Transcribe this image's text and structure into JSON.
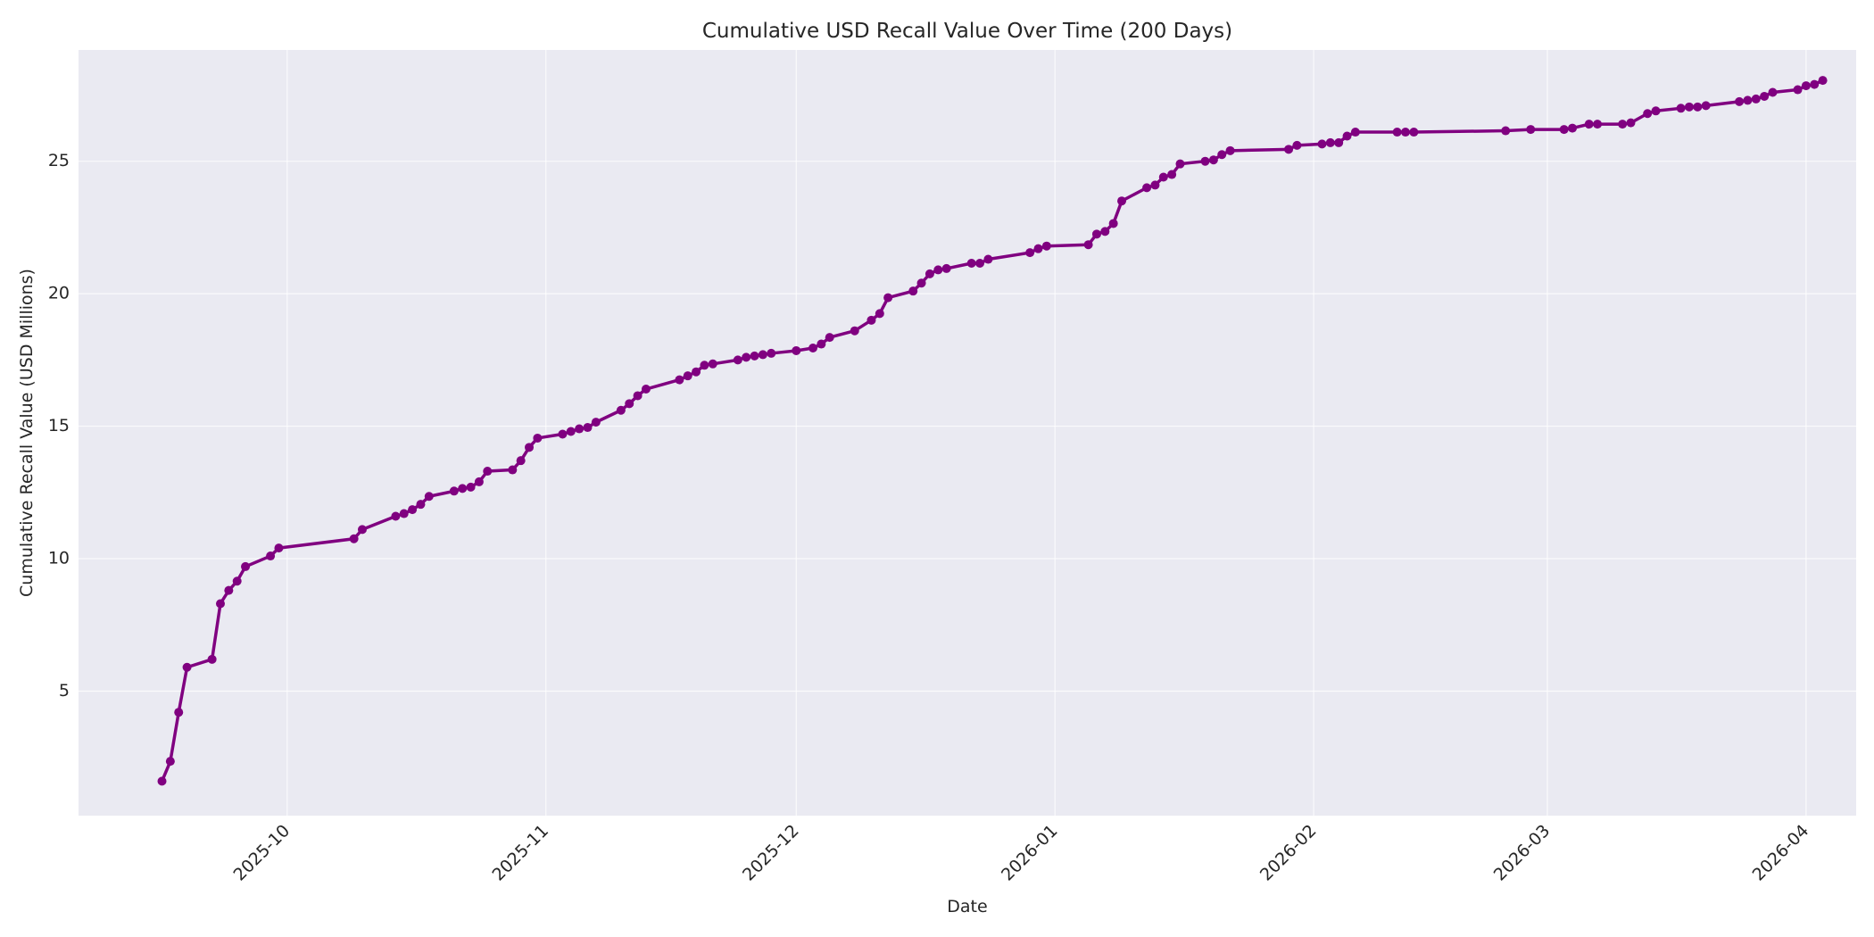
{
  "chart_data": {
    "type": "line",
    "title": "Cumulative USD Recall Value Over Time (200 Days)",
    "xlabel": "Date",
    "ylabel": "Cumulative Recall Value (USD Millions)",
    "x_ticks": [
      "2025-10-01",
      "2025-11-01",
      "2025-12-01",
      "2026-01-01",
      "2026-02-01",
      "2026-03-01",
      "2026-04-01"
    ],
    "x_tick_labels": [
      "2025-10",
      "2025-11",
      "2025-12",
      "2026-01",
      "2026-02",
      "2026-03",
      "2026-04"
    ],
    "y_ticks": [
      5,
      10,
      15,
      20,
      25
    ],
    "y_tick_labels": [
      "5",
      "10",
      "15",
      "20",
      "25"
    ],
    "xlim": [
      "2025-09-06",
      "2026-04-07"
    ],
    "ylim": [
      0.3,
      29.2
    ],
    "grid": true,
    "legend": false,
    "colors": {
      "line": "#800080",
      "plot_background": "#eaeaf2",
      "grid": "#ffffff"
    },
    "series": [
      {
        "x": [
          "2025-09-16",
          "2025-09-17",
          "2025-09-18",
          "2025-09-19",
          "2025-09-22",
          "2025-09-23",
          "2025-09-24",
          "2025-09-25",
          "2025-09-26",
          "2025-09-29",
          "2025-09-30",
          "2025-10-09",
          "2025-10-10",
          "2025-10-14",
          "2025-10-15",
          "2025-10-16",
          "2025-10-17",
          "2025-10-18",
          "2025-10-21",
          "2025-10-22",
          "2025-10-23",
          "2025-10-24",
          "2025-10-25",
          "2025-10-28",
          "2025-10-29",
          "2025-10-30",
          "2025-10-31",
          "2025-11-03",
          "2025-11-04",
          "2025-11-05",
          "2025-11-06",
          "2025-11-07",
          "2025-11-10",
          "2025-11-11",
          "2025-11-12",
          "2025-11-13",
          "2025-11-17",
          "2025-11-18",
          "2025-11-19",
          "2025-11-20",
          "2025-11-21",
          "2025-11-24",
          "2025-11-25",
          "2025-11-26",
          "2025-11-27",
          "2025-11-28",
          "2025-12-01",
          "2025-12-03",
          "2025-12-04",
          "2025-12-05",
          "2025-12-08",
          "2025-12-10",
          "2025-12-11",
          "2025-12-12",
          "2025-12-15",
          "2025-12-16",
          "2025-12-17",
          "2025-12-18",
          "2025-12-19",
          "2025-12-22",
          "2025-12-23",
          "2025-12-24",
          "2025-12-29",
          "2025-12-30",
          "2025-12-31",
          "2026-01-05",
          "2026-01-06",
          "2026-01-07",
          "2026-01-08",
          "2026-01-09",
          "2026-01-12",
          "2026-01-13",
          "2026-01-14",
          "2026-01-15",
          "2026-01-16",
          "2026-01-19",
          "2026-01-20",
          "2026-01-21",
          "2026-01-22",
          "2026-01-29",
          "2026-01-30",
          "2026-02-02",
          "2026-02-03",
          "2026-02-04",
          "2026-02-05",
          "2026-02-06",
          "2026-02-11",
          "2026-02-12",
          "2026-02-13",
          "2026-02-24",
          "2026-02-27",
          "2026-03-03",
          "2026-03-04",
          "2026-03-06",
          "2026-03-07",
          "2026-03-10",
          "2026-03-11",
          "2026-03-13",
          "2026-03-14",
          "2026-03-17",
          "2026-03-18",
          "2026-03-19",
          "2026-03-20",
          "2026-03-24",
          "2026-03-25",
          "2026-03-26",
          "2026-03-27",
          "2026-03-28",
          "2026-03-31",
          "2026-04-01",
          "2026-04-02",
          "2026-04-03"
        ],
        "y": [
          1.6,
          2.35,
          4.2,
          5.9,
          6.2,
          8.3,
          8.8,
          9.15,
          9.7,
          10.1,
          10.4,
          10.75,
          11.1,
          11.6,
          11.7,
          11.85,
          12.05,
          12.35,
          12.55,
          12.65,
          12.7,
          12.9,
          13.3,
          13.35,
          13.7,
          14.2,
          14.55,
          14.7,
          14.8,
          14.9,
          14.95,
          15.15,
          15.6,
          15.85,
          16.15,
          16.4,
          16.75,
          16.9,
          17.05,
          17.3,
          17.35,
          17.5,
          17.6,
          17.65,
          17.7,
          17.75,
          17.85,
          17.95,
          18.1,
          18.35,
          18.6,
          19.0,
          19.25,
          19.85,
          20.1,
          20.4,
          20.75,
          20.9,
          20.95,
          21.15,
          21.15,
          21.3,
          21.55,
          21.7,
          21.8,
          21.85,
          22.25,
          22.35,
          22.65,
          23.5,
          24.0,
          24.1,
          24.4,
          24.5,
          24.9,
          25.0,
          25.05,
          25.25,
          25.4,
          25.45,
          25.6,
          25.65,
          25.7,
          25.7,
          25.95,
          26.1,
          26.1,
          26.1,
          26.1,
          26.15,
          26.2,
          26.2,
          26.25,
          26.4,
          26.4,
          26.4,
          26.45,
          26.8,
          26.9,
          27.0,
          27.05,
          27.05,
          27.1,
          27.25,
          27.3,
          27.35,
          27.45,
          27.6,
          27.7,
          27.85,
          27.9,
          28.05
        ]
      }
    ]
  }
}
